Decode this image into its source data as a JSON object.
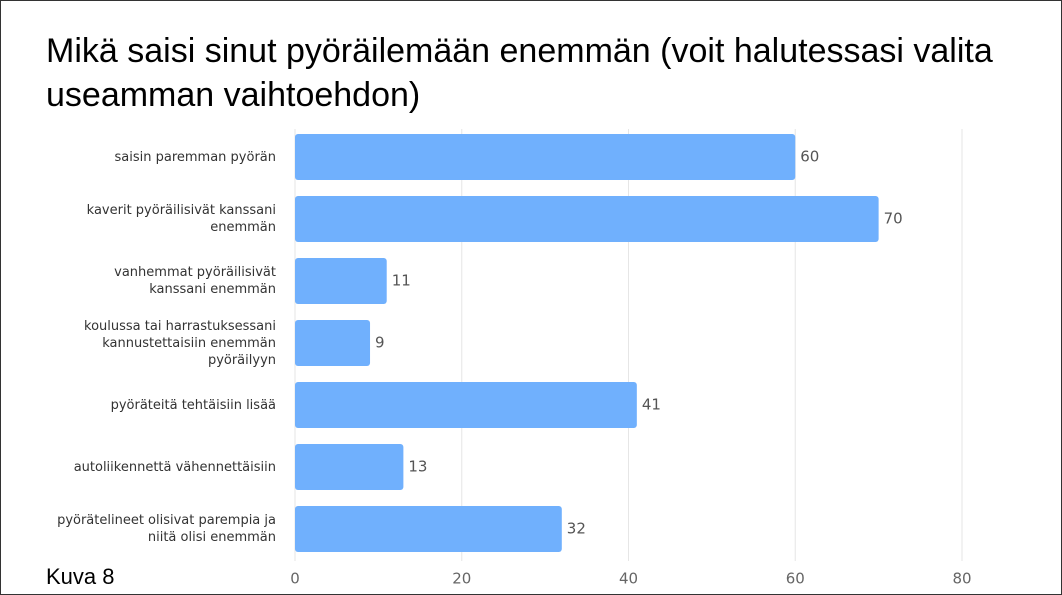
{
  "chart_data": {
    "type": "bar",
    "orientation": "horizontal",
    "title": "Mikä saisi sinut pyöräilemään enemmän (voit halutessasi valita useamman vaihtoehdon)",
    "caption": "Kuva 8",
    "categories": [
      "saisin paremman pyörän",
      "kaverit pyöräilisivät kanssani enemmän",
      "vanhemmat pyöräilisivät kanssani enemmän",
      "koulussa tai harrastuksessani kannustettaisiin enemmän pyöräilyyn",
      "pyöräteitä tehtäisiin lisää",
      "autoliikennettä vähennettäisiin",
      "pyörätelineet olisivat parempia ja niitä olisi enemmän"
    ],
    "values": [
      60,
      70,
      11,
      9,
      41,
      13,
      32
    ],
    "color": "#70b0fd",
    "xlim": [
      0,
      80
    ],
    "xticks": [
      0,
      20,
      40,
      60,
      80
    ],
    "grid": true
  }
}
